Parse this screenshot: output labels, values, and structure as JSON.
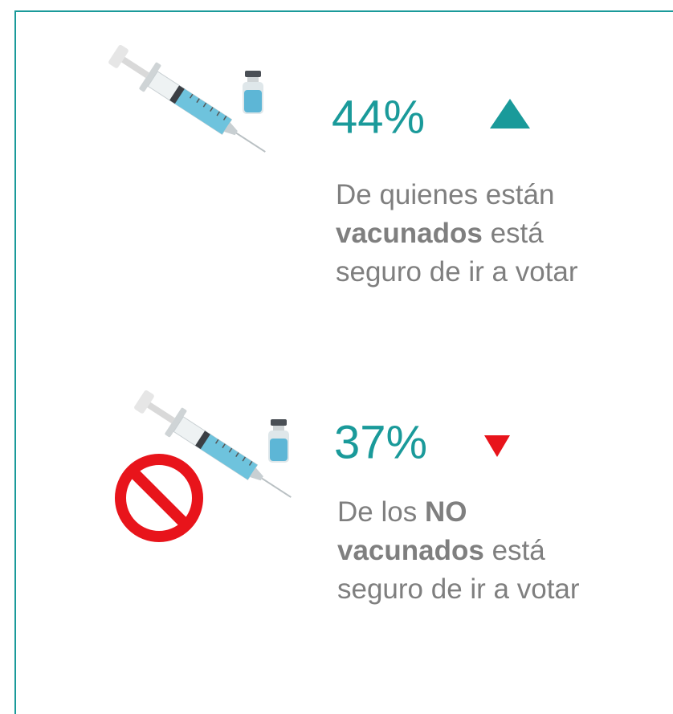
{
  "items": [
    {
      "value": "44%",
      "trend": "up",
      "color": "#1a9a9a",
      "trend_color": "#1a9a9a",
      "lines": [
        [
          {
            "text": "De quienes están"
          }
        ],
        [
          {
            "text": "vacunados",
            "bold": true
          },
          {
            "text": " está"
          }
        ],
        [
          {
            "text": "seguro de ir a votar"
          }
        ]
      ]
    },
    {
      "value": "37%",
      "trend": "down",
      "color": "#1a9a9a",
      "trend_color": "#e8141b",
      "lines": [
        [
          {
            "text": "De los "
          },
          {
            "text": "NO",
            "bold": true
          }
        ],
        [
          {
            "text": "vacunados",
            "bold": true
          },
          {
            "text": " está"
          }
        ],
        [
          {
            "text": "seguro de ir a votar"
          }
        ]
      ]
    }
  ]
}
